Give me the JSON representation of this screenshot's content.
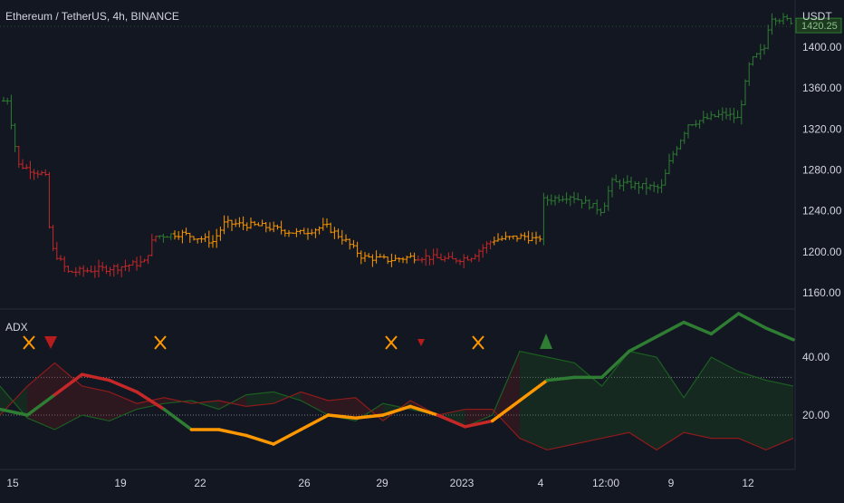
{
  "header": {
    "symbol_title": "Ethereum / TetherUS, 4h, BINANCE"
  },
  "price_axis": {
    "currency_label": "USDT",
    "last_price_label": "1420.25",
    "ticks": [
      "1400.00",
      "1360.00",
      "1320.00",
      "1280.00",
      "1240.00",
      "1200.00",
      "1160.00"
    ],
    "tick_values": [
      1400,
      1360,
      1320,
      1280,
      1240,
      1200,
      1160
    ]
  },
  "indicator": {
    "title": "ADX",
    "ticks": [
      "40.00",
      "20.00"
    ],
    "tick_values": [
      40,
      20
    ],
    "levels": [
      33,
      20
    ]
  },
  "time_axis": {
    "labels": [
      "15",
      "19",
      "22",
      "26",
      "29",
      "2023",
      "4",
      "12:00",
      "9",
      "12"
    ]
  },
  "colors": {
    "background": "#131722",
    "bull": "#2e7d32",
    "bear": "#c62828",
    "neutral": "#ff9800",
    "di_plus": "#1b5e20",
    "di_minus": "#8e1b1b",
    "level_line": "#787b86"
  },
  "chart_data": [
    {
      "type": "ohlc",
      "title": "Ethereum / TetherUS, 4h, BINANCE",
      "ylabel": "USDT",
      "ylim": [
        1140,
        1440
      ],
      "x": [
        "15",
        "19",
        "22",
        "26",
        "29",
        "2023",
        "4",
        "12:00",
        "9",
        "12"
      ],
      "segments": [
        {
          "trend": "bull",
          "from": "14",
          "to": "15",
          "approx_close": 1320
        },
        {
          "trend": "bear",
          "from": "15",
          "to": "20",
          "approx_close": 1180
        },
        {
          "trend": "bull",
          "from": "20",
          "to": "20",
          "approx_close": 1220
        },
        {
          "trend": "neutral",
          "from": "20",
          "to": "30",
          "approx_close": 1190
        },
        {
          "trend": "bear",
          "from": "30",
          "to": "2023",
          "approx_close": 1195
        },
        {
          "trend": "neutral",
          "from": "2023",
          "to": "4",
          "approx_close": 1250
        },
        {
          "trend": "bull",
          "from": "4",
          "to": "13",
          "approx_close": 1420.25
        }
      ],
      "last_price": 1420.25
    },
    {
      "type": "line",
      "title": "ADX",
      "ylim": [
        0,
        60
      ],
      "levels": [
        33,
        20
      ],
      "series": [
        {
          "values": [
            22,
            20,
            27,
            34,
            32,
            28,
            22,
            15,
            15,
            13,
            10,
            15,
            20,
            19,
            20,
            23,
            20,
            16,
            18,
            25,
            32,
            33,
            33,
            42,
            47,
            52,
            48,
            55,
            50,
            46
          ]
        },
        {
          "values": [
            30,
            19,
            15,
            20,
            18,
            22,
            24,
            25,
            22,
            27,
            28,
            25,
            20,
            18,
            24,
            22,
            20,
            16,
            20,
            42,
            40,
            38,
            30,
            42,
            40,
            26,
            40,
            35,
            32,
            30
          ]
        },
        {
          "values": [
            20,
            30,
            38,
            30,
            28,
            24,
            26,
            24,
            25,
            23,
            24,
            28,
            25,
            26,
            18,
            25,
            20,
            22,
            22,
            12,
            8,
            10,
            12,
            14,
            8,
            14,
            12,
            12,
            8,
            12
          ]
        }
      ],
      "signals": [
        {
          "kind": "cross",
          "x": "14"
        },
        {
          "kind": "sell",
          "x": "15"
        },
        {
          "kind": "cross",
          "x": "20"
        },
        {
          "kind": "cross",
          "x": "29"
        },
        {
          "kind": "sell",
          "x": "30"
        },
        {
          "kind": "cross",
          "x": "2023"
        },
        {
          "kind": "buy",
          "x": "4"
        }
      ]
    }
  ]
}
